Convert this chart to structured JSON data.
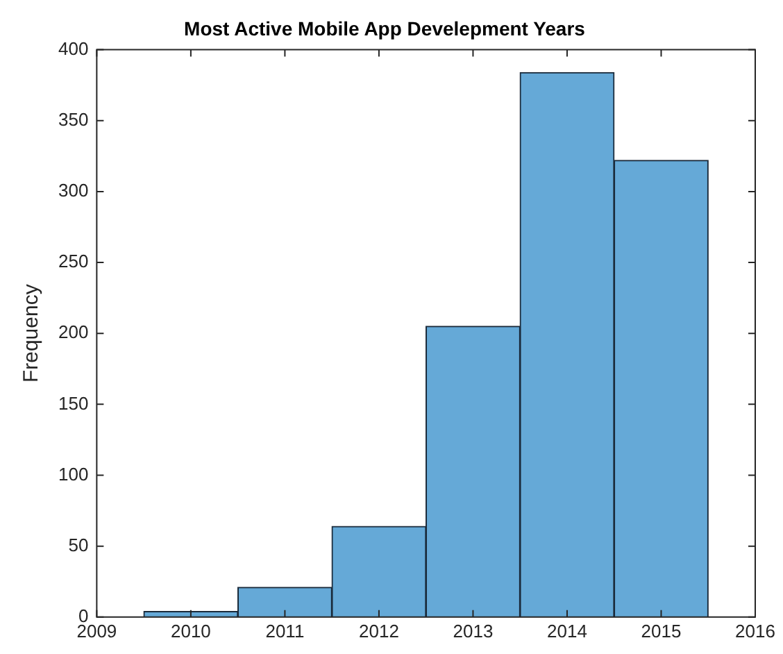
{
  "chart_data": {
    "type": "histogram",
    "title": "Most Active Mobile App Develepment Years",
    "ylabel": "Frequency",
    "bins": [
      2009.5,
      2010.5,
      2011.5,
      2012.5,
      2013.5,
      2014.5,
      2015.5
    ],
    "values": [
      4,
      21,
      64,
      205,
      384,
      322
    ],
    "color": "#65a9d7",
    "xlim": [
      2009,
      2016
    ],
    "xticks": [
      2009,
      2010,
      2011,
      2012,
      2013,
      2014,
      2015,
      2016
    ],
    "ylim": [
      0,
      400
    ],
    "yticks": [
      0,
      50,
      100,
      150,
      200,
      250,
      300,
      350,
      400
    ],
    "grid": false,
    "legend": false
  }
}
